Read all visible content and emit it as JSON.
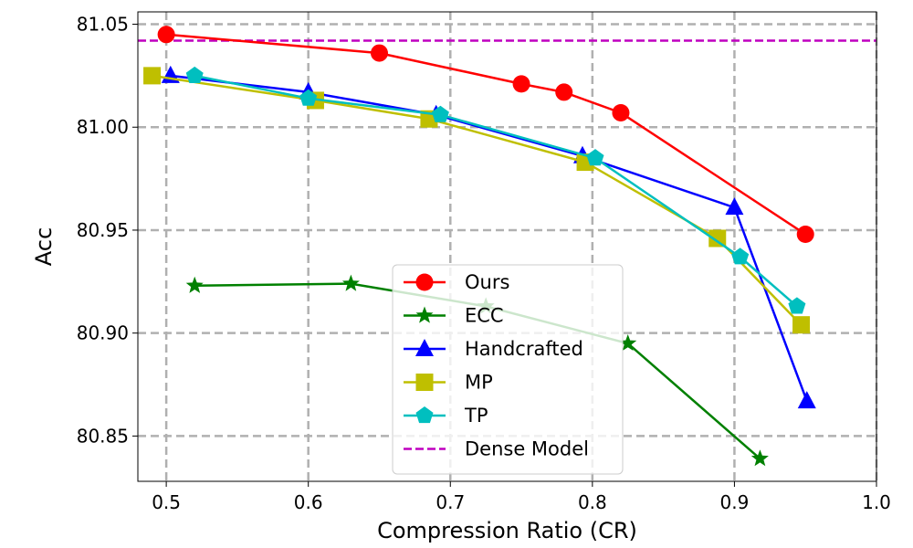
{
  "chart_data": {
    "type": "line",
    "xlabel": "Compression Ratio (CR)",
    "ylabel": "Acc",
    "xlim": [
      0.48,
      1.0
    ],
    "ylim": [
      80.828,
      81.056
    ],
    "x_ticks": [
      0.5,
      0.6,
      0.7,
      0.8,
      0.9,
      1.0
    ],
    "x_tick_labels": [
      "0.5",
      "0.6",
      "0.7",
      "0.8",
      "0.9",
      "1.0"
    ],
    "y_ticks": [
      80.85,
      80.9,
      80.95,
      81.0,
      81.05
    ],
    "y_tick_labels": [
      "80.85",
      "80.90",
      "80.95",
      "81.00",
      "81.05"
    ],
    "grid": true,
    "legend_position": "bottom-center",
    "series": [
      {
        "name": "Ours",
        "color": "#ff0000",
        "marker": "circle",
        "x": [
          0.5,
          0.65,
          0.75,
          0.78,
          0.82,
          0.95
        ],
        "y": [
          81.045,
          81.036,
          81.021,
          81.017,
          81.007,
          80.948
        ]
      },
      {
        "name": "ECC",
        "color": "#008000",
        "marker": "star",
        "x": [
          0.52,
          0.63,
          0.725,
          0.825,
          0.918
        ],
        "y": [
          80.923,
          80.924,
          80.913,
          80.895,
          80.839
        ]
      },
      {
        "name": "Handcrafted",
        "color": "#0000ff",
        "marker": "triangle",
        "x": [
          0.503,
          0.6,
          0.69,
          0.793,
          0.9,
          0.951
        ],
        "y": [
          81.025,
          81.017,
          81.006,
          80.986,
          80.961,
          80.867
        ]
      },
      {
        "name": "MP",
        "color": "#bfbf00",
        "marker": "square",
        "x": [
          0.49,
          0.605,
          0.685,
          0.795,
          0.888,
          0.947
        ],
        "y": [
          81.025,
          81.013,
          81.004,
          80.983,
          80.946,
          80.904
        ]
      },
      {
        "name": "TP",
        "color": "#00bfbf",
        "marker": "pentagon",
        "x": [
          0.52,
          0.6,
          0.693,
          0.802,
          0.904,
          0.944
        ],
        "y": [
          81.025,
          81.014,
          81.006,
          80.985,
          80.937,
          80.913
        ]
      },
      {
        "name": "Dense Model",
        "color": "#bf00bf",
        "marker": "none",
        "dashed": true,
        "y_constant": 81.042
      }
    ]
  }
}
